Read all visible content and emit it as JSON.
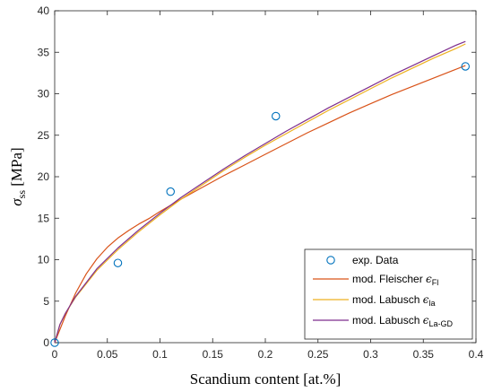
{
  "chart_data": {
    "type": "scatter",
    "title": "",
    "xlabel": "Scandium content [at.%]",
    "ylabel": {
      "symbol": "σ",
      "subscript": "ss",
      "unit": " [MPa]"
    },
    "xlim": [
      0,
      0.4
    ],
    "ylim": [
      0,
      40
    ],
    "xticks": [
      0,
      0.05,
      0.1,
      0.15,
      0.2,
      0.25,
      0.3,
      0.35,
      0.4
    ],
    "xtick_labels": [
      "0",
      "0.05",
      "0.1",
      "0.15",
      "0.2",
      "0.25",
      "0.3",
      "0.35",
      "0.4"
    ],
    "yticks": [
      0,
      5,
      10,
      15,
      20,
      25,
      30,
      35,
      40
    ],
    "ytick_labels": [
      "0",
      "5",
      "10",
      "15",
      "20",
      "25",
      "30",
      "35",
      "40"
    ],
    "grid": false,
    "legend_position": "bottom-right",
    "series": [
      {
        "name": "exp. Data",
        "kind": "markers",
        "color": "#0072BD",
        "x": [
          0,
          0.06,
          0.11,
          0.21,
          0.39
        ],
        "y": [
          0,
          9.6,
          18.2,
          27.3,
          33.3
        ]
      },
      {
        "name": "mod. Fleischer ",
        "subscript": "Fl",
        "kind": "line",
        "color": "#D95319",
        "x": [
          0,
          0.005,
          0.01,
          0.02,
          0.03,
          0.04,
          0.05,
          0.06,
          0.07,
          0.08,
          0.09,
          0.1,
          0.12,
          0.14,
          0.16,
          0.18,
          0.2,
          0.22,
          0.24,
          0.26,
          0.28,
          0.3,
          0.32,
          0.34,
          0.36,
          0.38,
          0.39
        ],
        "y": [
          0,
          1.6,
          3.2,
          6.0,
          8.3,
          10.1,
          11.5,
          12.6,
          13.5,
          14.3,
          15.0,
          15.8,
          17.3,
          18.7,
          20.1,
          21.4,
          22.7,
          24.0,
          25.3,
          26.5,
          27.7,
          28.8,
          29.9,
          30.9,
          31.9,
          32.9,
          33.4
        ]
      },
      {
        "name": "mod. Labusch ",
        "subscript": "la",
        "kind": "line",
        "color": "#EDB120",
        "x": [
          0,
          0.005,
          0.01,
          0.02,
          0.04,
          0.06,
          0.08,
          0.1,
          0.12,
          0.14,
          0.16,
          0.18,
          0.2,
          0.22,
          0.24,
          0.26,
          0.28,
          0.3,
          0.32,
          0.34,
          0.36,
          0.38,
          0.39
        ],
        "y": [
          0,
          2.2,
          3.5,
          5.5,
          8.7,
          11.2,
          13.4,
          15.4,
          17.3,
          19.0,
          20.7,
          22.3,
          23.8,
          25.2,
          26.6,
          28.0,
          29.3,
          30.6,
          31.9,
          33.1,
          34.3,
          35.4,
          36.0
        ]
      },
      {
        "name": "mod. Labusch ",
        "subscript": "La-GD",
        "kind": "line",
        "color": "#7E2F8E",
        "x": [
          0,
          0.005,
          0.01,
          0.02,
          0.04,
          0.06,
          0.08,
          0.1,
          0.12,
          0.14,
          0.16,
          0.18,
          0.2,
          0.22,
          0.24,
          0.26,
          0.28,
          0.3,
          0.32,
          0.34,
          0.36,
          0.38,
          0.39
        ],
        "y": [
          0,
          2.2,
          3.5,
          5.6,
          8.9,
          11.4,
          13.6,
          15.6,
          17.5,
          19.2,
          20.9,
          22.5,
          24.0,
          25.5,
          26.9,
          28.3,
          29.6,
          30.9,
          32.2,
          33.4,
          34.6,
          35.8,
          36.3
        ]
      }
    ]
  }
}
